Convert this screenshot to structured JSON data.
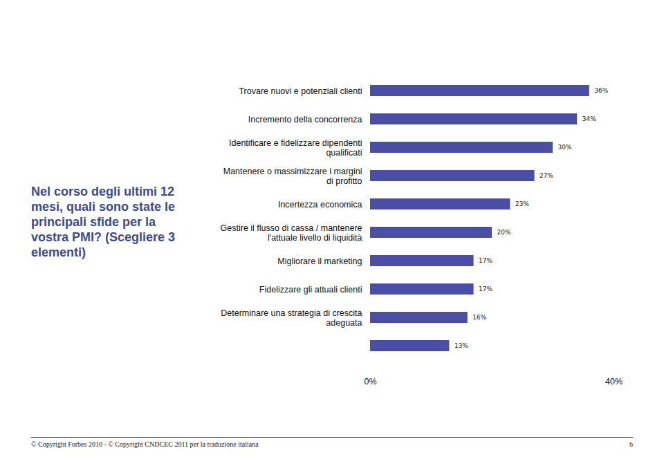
{
  "chart_data": {
    "type": "bar",
    "orientation": "horizontal",
    "title": "Nel corso degli ultimi 12 mesi, quali sono state le principali sfide per la vostra PMI? (Scegliere 3 elementi)",
    "categories": [
      "Trovare nuovi e potenziali clienti",
      "Incremento della concorrenza",
      "Identificare e fidelizzare dipendenti qualificati",
      "Mantenere o massimizzare i margini di profitto",
      "Incertezza economica",
      "Gestire il flusso di cassa / mantenere l'attuale livello di liquidità",
      "Migliorare il marketing",
      "Fidelizzare gli attuali clienti",
      "Determinare una strategia di crescita adeguata",
      null
    ],
    "values": [
      36,
      34,
      30,
      27,
      23,
      20,
      17,
      17,
      16,
      13
    ],
    "value_labels": [
      "36%",
      "34%",
      "30%",
      "27%",
      "23%",
      "20%",
      "17%",
      "17%",
      "16%",
      "13%"
    ],
    "data_labels": true,
    "color": "#4a4fa5",
    "xlim": [
      0,
      40
    ],
    "xticks": [
      {
        "value": 0,
        "label": "0%"
      },
      {
        "value": 40,
        "label": "40%"
      }
    ],
    "grid": false
  },
  "footer": {
    "text": "© Copyright Forbes 2010 - © Copyright CNDCEC 2011 per la traduzione italiana",
    "page": "6"
  }
}
